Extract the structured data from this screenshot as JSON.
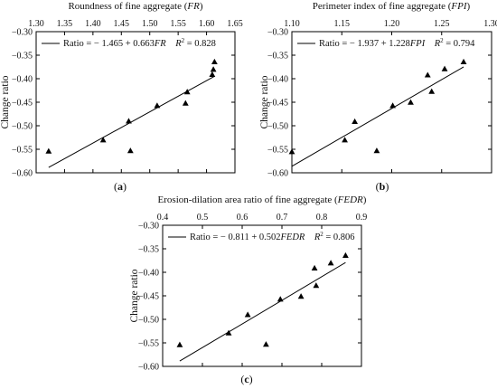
{
  "chart_data": [
    {
      "type": "scatter",
      "panel_label_pre": "(",
      "panel_label_letter": "a",
      "panel_label_post": ")",
      "xlabel_text": "Roundness of fine aggregate (",
      "xlabel_sym": "FR",
      "xlabel_close": ")",
      "ylabel": "Change ratio",
      "xlim": [
        1.3,
        1.65
      ],
      "ylim": [
        -0.6,
        -0.3
      ],
      "xticks": [
        "1.30",
        "1.35",
        "1.40",
        "1.45",
        "1.50",
        "1.55",
        "1.60",
        "1.65"
      ],
      "yticks": [
        "-0.60",
        "-0.55",
        "-0.50",
        "-0.45",
        "-0.40",
        "-0.35",
        "-0.30"
      ],
      "xtick_values": [
        1.3,
        1.35,
        1.4,
        1.45,
        1.5,
        1.55,
        1.6,
        1.65
      ],
      "ytick_values": [
        -0.6,
        -0.55,
        -0.5,
        -0.45,
        -0.4,
        -0.35,
        -0.3
      ],
      "x": [
        1.322,
        1.418,
        1.463,
        1.466,
        1.513,
        1.563,
        1.566,
        1.61,
        1.612,
        1.614
      ],
      "y": [
        -0.554,
        -0.53,
        -0.49,
        -0.553,
        -0.457,
        -0.452,
        -0.428,
        -0.391,
        -0.38,
        -0.364
      ],
      "fit": {
        "intercept": -1.465,
        "slope": 0.663,
        "x_range": [
          1.322,
          1.614
        ]
      },
      "eq_prefix": "Ratio = − 1.465 + 0.663",
      "eq_sym": "FR",
      "r2_label": "R",
      "r2_sup": "2",
      "r2_value": " = 0.828",
      "legend_position": "top-left",
      "grid": false
    },
    {
      "type": "scatter",
      "panel_label_pre": "(",
      "panel_label_letter": "b",
      "panel_label_post": ")",
      "xlabel_text": "Perimeter index of fine aggregate (",
      "xlabel_sym": "FPI",
      "xlabel_close": ")",
      "ylabel": "Change ratio",
      "xlim": [
        1.1,
        1.3
      ],
      "ylim": [
        -0.6,
        -0.3
      ],
      "xticks": [
        "1.10",
        "1.15",
        "1.20",
        "1.25",
        "1.30"
      ],
      "yticks": [
        "-0.60",
        "-0.55",
        "-0.50",
        "-0.45",
        "-0.40",
        "-0.35",
        "-0.30"
      ],
      "xtick_values": [
        1.1,
        1.15,
        1.2,
        1.25,
        1.3
      ],
      "ytick_values": [
        -0.6,
        -0.55,
        -0.5,
        -0.45,
        -0.4,
        -0.35,
        -0.3
      ],
      "x": [
        1.1,
        1.153,
        1.163,
        1.185,
        1.201,
        1.219,
        1.236,
        1.24,
        1.253,
        1.272
      ],
      "y": [
        -0.555,
        -0.53,
        -0.491,
        -0.553,
        -0.457,
        -0.45,
        -0.392,
        -0.427,
        -0.379,
        -0.364
      ],
      "fit": {
        "intercept": -1.937,
        "slope": 1.228,
        "x_range": [
          1.1,
          1.272
        ]
      },
      "eq_prefix": "Ratio = − 1.937 + 1.228",
      "eq_sym": "FPI",
      "r2_label": "R",
      "r2_sup": "2",
      "r2_value": " = 0.794",
      "legend_position": "top-left",
      "grid": false
    },
    {
      "type": "scatter",
      "panel_label_pre": "(",
      "panel_label_letter": "c",
      "panel_label_post": ")",
      "xlabel_text": "Erosion-dilation area ratio of fine aggregate (",
      "xlabel_sym": "FEDR",
      "xlabel_close": ")",
      "ylabel": "Change ratio",
      "xlim": [
        0.4,
        0.9
      ],
      "ylim": [
        -0.6,
        -0.3
      ],
      "xticks": [
        "0.4",
        "0.5",
        "0.6",
        "0.7",
        "0.8",
        "0.9"
      ],
      "yticks": [
        "-0.60",
        "-0.55",
        "-0.50",
        "-0.45",
        "-0.40",
        "-0.35",
        "-0.30"
      ],
      "xtick_values": [
        0.4,
        0.5,
        0.6,
        0.7,
        0.8,
        0.9
      ],
      "ytick_values": [
        -0.6,
        -0.55,
        -0.5,
        -0.45,
        -0.4,
        -0.35,
        -0.3
      ],
      "x": [
        0.443,
        0.566,
        0.614,
        0.66,
        0.696,
        0.748,
        0.782,
        0.786,
        0.823,
        0.86
      ],
      "y": [
        -0.554,
        -0.529,
        -0.49,
        -0.553,
        -0.457,
        -0.451,
        -0.391,
        -0.428,
        -0.38,
        -0.364
      ],
      "fit": {
        "intercept": -0.811,
        "slope": 0.502,
        "x_range": [
          0.443,
          0.86
        ]
      },
      "eq_prefix": "Ratio = − 0.811 + 0.502",
      "eq_sym": "FEDR",
      "r2_label": "R",
      "r2_sup": "2",
      "r2_value": " = 0.806",
      "legend_position": "top-left",
      "grid": false
    }
  ]
}
